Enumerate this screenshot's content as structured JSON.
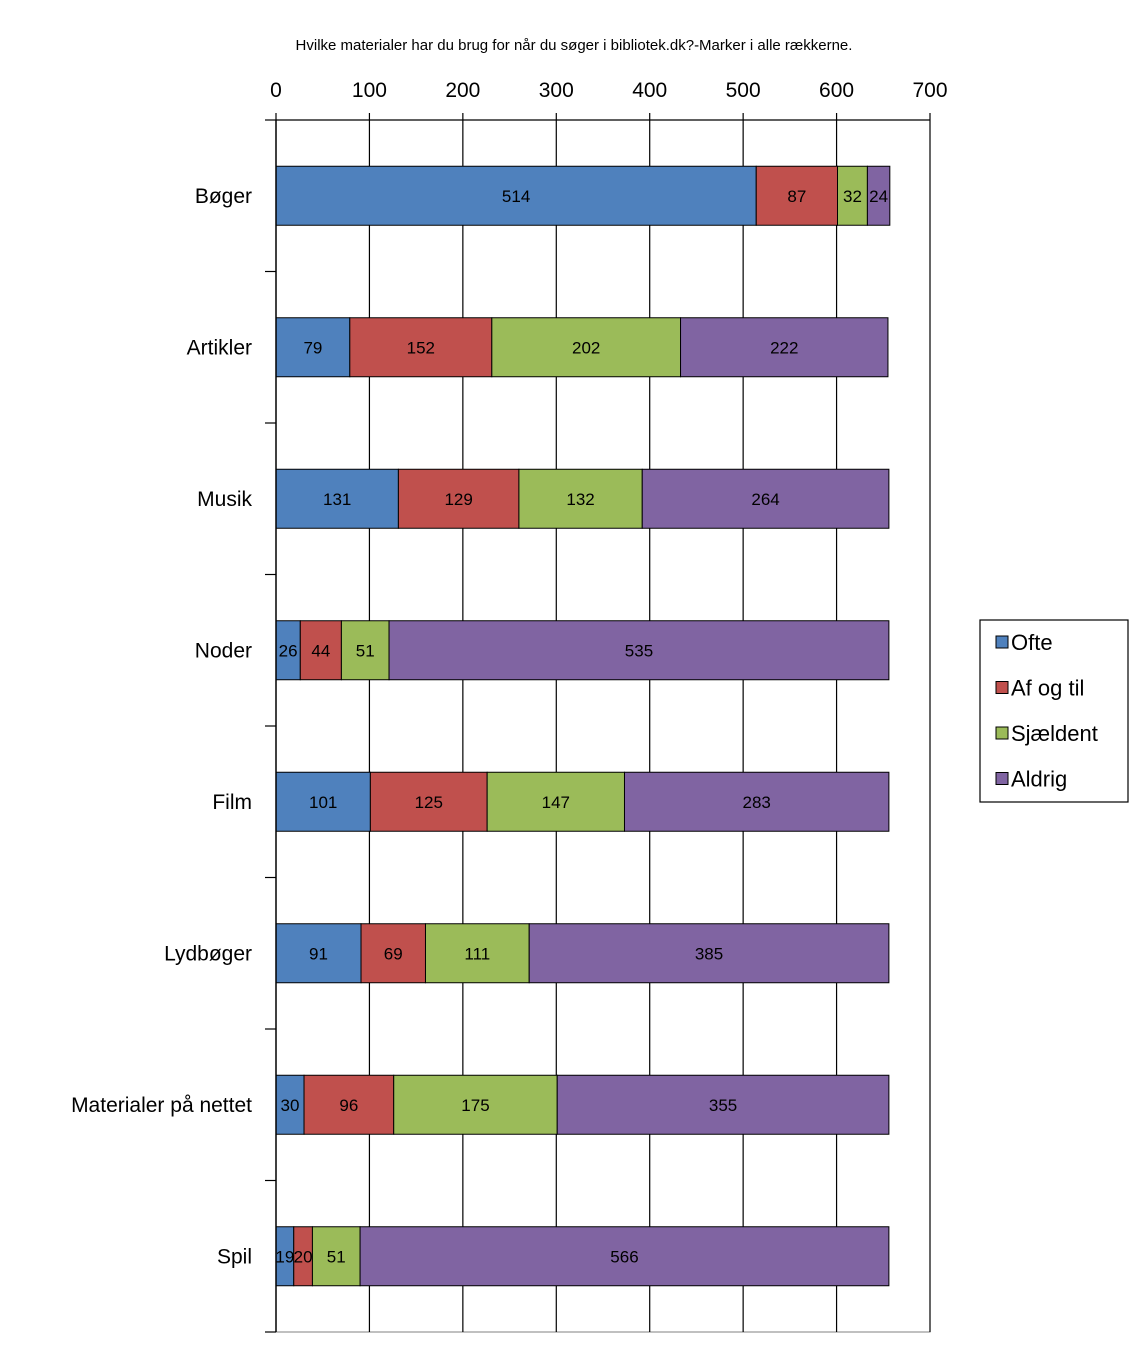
{
  "chart_data": {
    "type": "bar",
    "orientation": "horizontal",
    "stacked": true,
    "title": "Hvilke materialer har du brug for når du søger i bibliotek.dk?-Marker i alle rækkerne.",
    "categories": [
      "Bøger",
      "Artikler",
      "Musik",
      "Noder",
      "Film",
      "Lydbøger",
      "Materialer på nettet",
      "Spil"
    ],
    "series": [
      {
        "name": "Ofte",
        "color": "#4f81bd",
        "values": [
          514,
          79,
          131,
          26,
          101,
          91,
          30,
          19
        ]
      },
      {
        "name": "Af og til",
        "color": "#c0504d",
        "values": [
          87,
          152,
          129,
          44,
          125,
          69,
          96,
          20
        ]
      },
      {
        "name": "Sjældent",
        "color": "#9bbb59",
        "values": [
          32,
          202,
          132,
          51,
          147,
          111,
          175,
          51
        ]
      },
      {
        "name": "Aldrig",
        "color": "#8064a2",
        "values": [
          24,
          222,
          264,
          535,
          283,
          385,
          355,
          566
        ]
      }
    ],
    "xlim": [
      0,
      700
    ],
    "xticks": [
      0,
      100,
      200,
      300,
      400,
      500,
      600,
      700
    ],
    "grid": true,
    "data_labels": true,
    "legend_position": "right",
    "xaxis_position": "top"
  }
}
